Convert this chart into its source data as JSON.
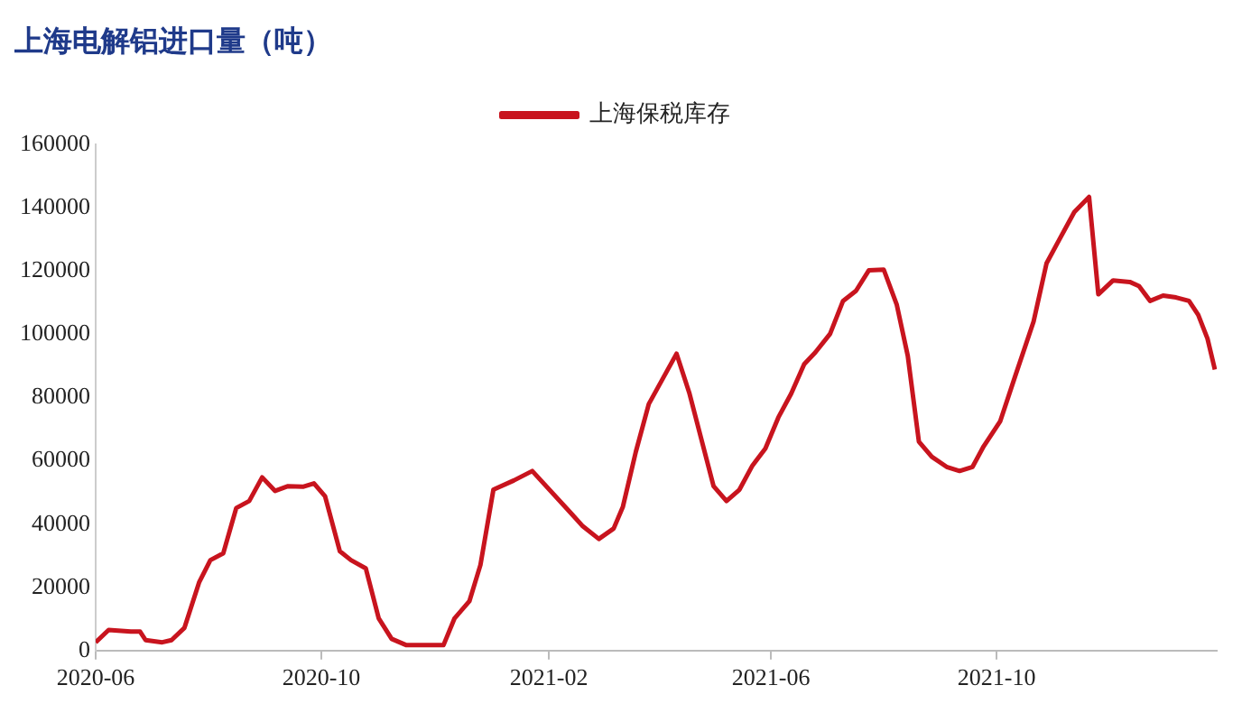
{
  "chart_data": {
    "type": "line",
    "title": "上海电解铝进口量（吨）",
    "legend": "top",
    "x": [
      "2020-06-01",
      "2020-06-08",
      "2020-06-20",
      "2020-06-25",
      "2020-06-28",
      "2020-07-07",
      "2020-07-12",
      "2020-07-19",
      "2020-07-27",
      "2020-08-02",
      "2020-08-09",
      "2020-08-16",
      "2020-08-23",
      "2020-08-30",
      "2020-09-06",
      "2020-09-13",
      "2020-09-21",
      "2020-09-27",
      "2020-10-03",
      "2020-10-11",
      "2020-10-17",
      "2020-10-25",
      "2020-11-01",
      "2020-11-08",
      "2020-11-16",
      "2020-12-06",
      "2020-12-12",
      "2020-12-20",
      "2020-12-26",
      "2021-01-02",
      "2021-01-13",
      "2021-01-23",
      "2021-02-13",
      "2021-02-19",
      "2021-02-28",
      "2021-03-08",
      "2021-03-13",
      "2021-03-20",
      "2021-03-27",
      "2021-04-11",
      "2021-04-18",
      "2021-05-01",
      "2021-05-08",
      "2021-05-15",
      "2021-05-22",
      "2021-05-29",
      "2021-06-05",
      "2021-06-12",
      "2021-06-19",
      "2021-06-25",
      "2021-07-03",
      "2021-07-10",
      "2021-07-17",
      "2021-07-24",
      "2021-08-01",
      "2021-08-08",
      "2021-08-14",
      "2021-08-20",
      "2021-08-27",
      "2021-09-04",
      "2021-09-11",
      "2021-09-18",
      "2021-09-24",
      "2021-10-03",
      "2021-10-11",
      "2021-10-21",
      "2021-10-28",
      "2021-11-04",
      "2021-11-12",
      "2021-11-20",
      "2021-11-25",
      "2021-12-03",
      "2021-12-12",
      "2021-12-17",
      "2021-12-23",
      "2021-12-30",
      "2022-01-06",
      "2022-01-13",
      "2022-01-18",
      "2022-01-23",
      "2022-01-27"
    ],
    "series": [
      {
        "name": "上海保税库存",
        "color": "#c8141e",
        "values": [
          2600,
          6500,
          6000,
          6000,
          3300,
          2600,
          3300,
          7200,
          21700,
          28600,
          30800,
          45100,
          47300,
          54800,
          50500,
          52000,
          51800,
          52900,
          48800,
          31400,
          28600,
          26000,
          10200,
          3700,
          1700,
          1700,
          10200,
          15600,
          27100,
          50900,
          53800,
          56800,
          43400,
          39500,
          35300,
          38600,
          45500,
          62900,
          78000,
          93900,
          81300,
          52000,
          47300,
          50900,
          58500,
          63900,
          73700,
          81300,
          90600,
          94300,
          100200,
          110600,
          113800,
          120300,
          120500,
          109500,
          93200,
          66100,
          61300,
          58100,
          56800,
          58100,
          64600,
          72600,
          86700,
          104100,
          122500,
          130100,
          138700,
          143500,
          112700,
          117100,
          116600,
          115300,
          110600,
          112300,
          111700,
          110600,
          106200,
          98700,
          88900
        ]
      }
    ],
    "xlim": [
      "2020-06-01",
      "2022-01-28"
    ],
    "xticks": [
      "2020-06",
      "2020-10",
      "2021-02",
      "2021-06",
      "2021-10"
    ],
    "ylim": [
      0,
      160000
    ],
    "yticks": [
      0,
      20000,
      40000,
      60000,
      80000,
      100000,
      120000,
      140000,
      160000
    ],
    "grid": false,
    "marker": "none",
    "line_style": "solid"
  }
}
